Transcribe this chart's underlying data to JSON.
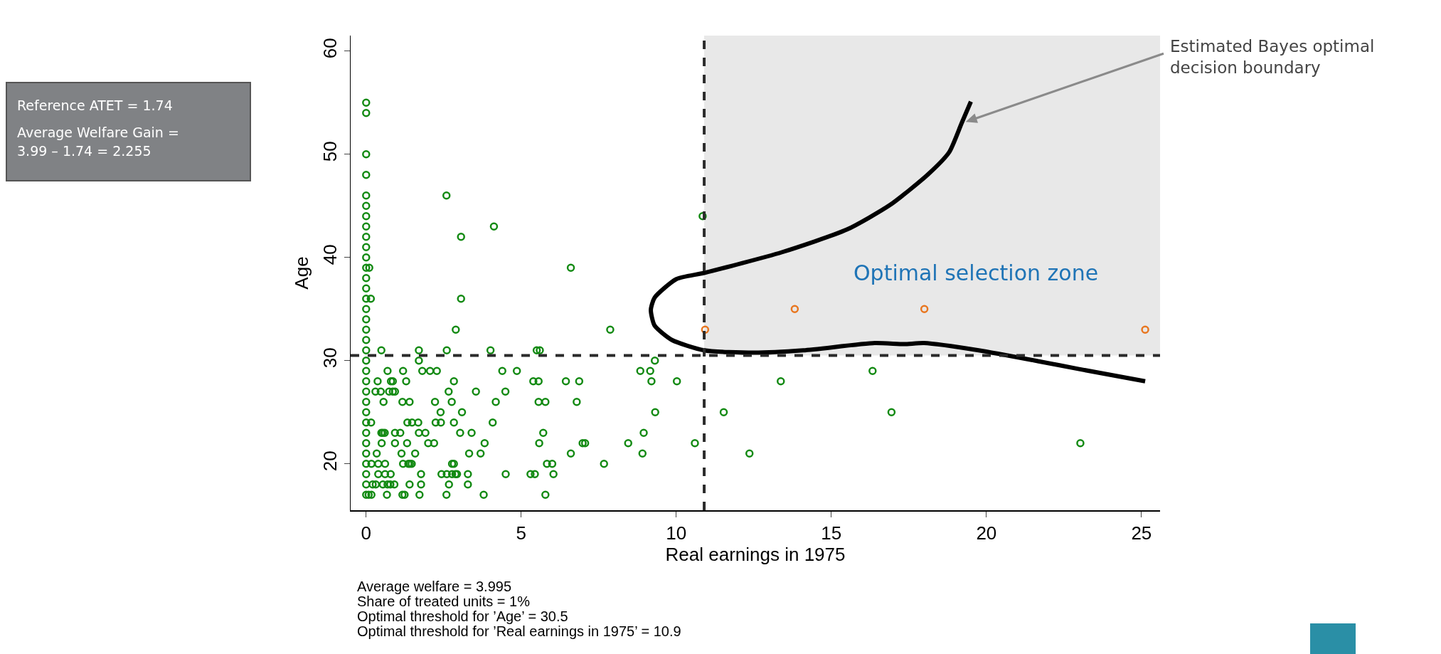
{
  "chart_data": {
    "type": "scatter",
    "xlabel": "Real earnings in 1975",
    "ylabel": "Age",
    "xlim": [
      -0.5,
      25.6
    ],
    "xticks": [
      0,
      5,
      10,
      15,
      20,
      25
    ],
    "ylim": [
      15.5,
      61.5
    ],
    "yticks": [
      20,
      30,
      40,
      50,
      60
    ],
    "grid": false,
    "marker": "circle",
    "series": [
      {
        "color": "#138a13",
        "x": [
          0,
          0,
          0,
          0,
          0,
          0,
          0,
          0,
          0,
          0,
          0,
          0,
          0,
          0,
          0,
          0,
          0,
          0,
          0,
          0,
          0,
          0,
          0,
          0,
          0,
          0,
          0,
          0,
          0,
          0,
          0,
          0,
          0,
          0,
          0.1,
          0.15,
          0.16,
          0.17,
          0.08,
          0.17,
          0.21,
          2.59,
          3.06,
          4.12,
          3.06,
          2.89,
          0.49,
          1.7,
          2.6,
          4.01,
          5.5,
          5.6,
          1.7,
          0.69,
          1.19,
          1.81,
          2.06,
          2.28,
          4.39,
          4.86,
          0.37,
          0.8,
          0.86,
          1.29,
          2.83,
          5.39,
          5.56,
          0.3,
          0.47,
          0.74,
          0.86,
          0.93,
          2.66,
          3.54,
          4.49,
          0.56,
          1.17,
          1.4,
          2.22,
          2.76,
          4.18,
          5.56,
          5.78,
          2.4,
          3.09,
          1.33,
          1.48,
          1.68,
          2.24,
          2.41,
          2.83,
          4.08,
          0.49,
          0.54,
          0.6,
          0.93,
          1.1,
          1.7,
          1.91,
          3.03,
          3.4,
          5.71,
          0.5,
          0.93,
          1.32,
          2.0,
          2.19,
          3.82,
          5.58,
          0.34,
          1.14,
          1.58,
          3.32,
          3.69,
          0.39,
          0.61,
          1.19,
          1.36,
          1.41,
          1.47,
          2.77,
          2.83,
          5.83,
          6.0,
          0.39,
          0.61,
          0.79,
          1.77,
          2.43,
          2.6,
          2.77,
          2.88,
          2.93,
          3.28,
          4.5,
          5.3,
          5.44,
          6.04,
          0.31,
          0.54,
          0.69,
          0.78,
          0.91,
          1.4,
          1.77,
          2.67,
          3.28,
          0.67,
          1.17,
          1.24,
          1.72,
          2.59,
          3.79,
          5.78,
          10.85,
          6.6,
          7.87,
          9.31,
          8.84,
          9.16,
          16.33,
          6.44,
          6.87,
          9.2,
          10.02,
          13.37,
          6.79,
          9.32,
          11.53,
          16.94,
          8.95,
          6.98,
          7.06,
          8.45,
          10.6,
          6.6,
          8.91,
          12.36,
          7.67,
          23.03
        ],
        "values": [
          55,
          54,
          50,
          48,
          46,
          45,
          44,
          43,
          42,
          41,
          40,
          39,
          38,
          37,
          36,
          35,
          34,
          33,
          32,
          31,
          30,
          29,
          28,
          27,
          26,
          25,
          24,
          23,
          22,
          21,
          20,
          19,
          18,
          17,
          39,
          36,
          24,
          20,
          17,
          17,
          18,
          46,
          42,
          43,
          36,
          33,
          31,
          31,
          31,
          31,
          31,
          31,
          30,
          29,
          29,
          29,
          29,
          29,
          29,
          29,
          28,
          28,
          28,
          28,
          28,
          28,
          28,
          27,
          27,
          27,
          27,
          27,
          27,
          27,
          27,
          26,
          26,
          26,
          26,
          26,
          26,
          26,
          26,
          25,
          25,
          24,
          24,
          24,
          24,
          24,
          24,
          24,
          23,
          23,
          23,
          23,
          23,
          23,
          23,
          23,
          23,
          23,
          22,
          22,
          22,
          22,
          22,
          22,
          22,
          21,
          21,
          21,
          21,
          21,
          20,
          20,
          20,
          20,
          20,
          20,
          20,
          20,
          20,
          20,
          19,
          19,
          19,
          19,
          19,
          19,
          19,
          19,
          19,
          19,
          19,
          19,
          19,
          19,
          18,
          18,
          18,
          18,
          18,
          18,
          18,
          18,
          18,
          17,
          17,
          17,
          17,
          17,
          17,
          17,
          44,
          39,
          33,
          30,
          29,
          29,
          29,
          28,
          28,
          28,
          28,
          28,
          26,
          25,
          25,
          25,
          23,
          22,
          22,
          22,
          22,
          21,
          21,
          21,
          20,
          22
        ]
      },
      {
        "color": "#e8761f",
        "x": [
          10.93,
          13.82,
          18.0,
          25.12
        ],
        "values": [
          33,
          35,
          35,
          33
        ]
      },
      {
        "type": "line",
        "marker": "none",
        "color": "#000000",
        "x": [
          19.5,
          19.2,
          18.8,
          18.1,
          16.9,
          15.5,
          13.4,
          10.9,
          10.0,
          9.3,
          9.18,
          9.3,
          9.86,
          10.9,
          12.5,
          14.1,
          16.4,
          17.35,
          17.99,
          19.75,
          21.75,
          22.96,
          25.12
        ],
        "values": [
          55.1,
          53.0,
          50.2,
          48,
          45.1,
          42.7,
          40.5,
          38.5,
          37.9,
          36.1,
          34.9,
          33.4,
          32,
          31,
          30.77,
          31.0,
          31.7,
          31.6,
          31.7,
          31.0,
          29.9,
          29.2,
          28.0
        ]
      }
    ],
    "ref_lines": [
      {
        "axis": "x",
        "value": 10.9,
        "color": "#2b2b2b",
        "line_style": "dashed"
      },
      {
        "axis": "y",
        "value": 30.5,
        "color": "#2b2b2b",
        "line_style": "dashed"
      }
    ],
    "bands": [
      {
        "axis": "x",
        "from": 10.9,
        "to": 25.6,
        "label": "Optimal selection zone",
        "color": "#e8e8e8"
      }
    ],
    "annotations": [
      "Reference ATET = 1.74",
      "Average Welfare Gain =\n3.99 – 1.74 = 2.255",
      "Average welfare = 3.995\nShare of treated units = 1%\nOptimal threshold for ’Age’ = 30.5\nOptimal threshold for ’Real earnings in 1975’ = 10.9",
      "Estimated Bayes optimal\ndecision boundary"
    ]
  }
}
